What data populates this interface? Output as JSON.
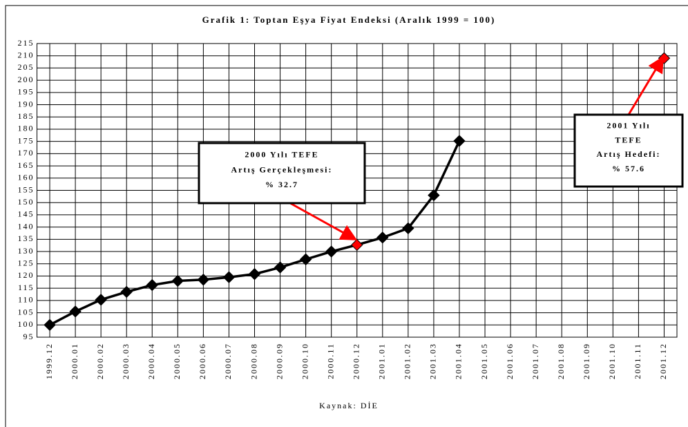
{
  "chart_data": {
    "type": "line",
    "title": "Grafik 1: Toptan Eşya Fiyat Endeksi (Aralık 1999 = 100)",
    "source": "Kaynak: DİE",
    "categories": [
      "1999.12",
      "2000.01",
      "2000.02",
      "2000.03",
      "2000.04",
      "2000.05",
      "2000.06",
      "2000.07",
      "2000.08",
      "2000.09",
      "2000.10",
      "2000.11",
      "2000.12",
      "2001.01",
      "2001.02",
      "2001.03",
      "2001.04",
      "2001.05",
      "2001.06",
      "2001.07",
      "2001.08",
      "2001.09",
      "2001.10",
      "2001.11",
      "2001.12"
    ],
    "series": [
      {
        "color": "#000000",
        "values": [
          100,
          105.5,
          110.3,
          113.5,
          116.3,
          118,
          118.5,
          119.5,
          120.8,
          123.5,
          126.8,
          130,
          132.7,
          135.7,
          139.5,
          153,
          175.2,
          null,
          null,
          null,
          null,
          null,
          null,
          null,
          209
        ],
        "point_colors": [
          "#000000",
          "#000000",
          "#000000",
          "#000000",
          "#000000",
          "#000000",
          "#000000",
          "#000000",
          "#000000",
          "#000000",
          "#000000",
          "#000000",
          "#ff0000",
          "#000000",
          "#000000",
          "#000000",
          "#000000",
          null,
          null,
          null,
          null,
          null,
          null,
          null,
          "#ff0000"
        ]
      }
    ],
    "ylim": [
      95,
      215
    ],
    "yticks": [
      95,
      100,
      105,
      110,
      115,
      120,
      125,
      130,
      135,
      140,
      145,
      150,
      155,
      160,
      165,
      170,
      175,
      180,
      185,
      190,
      195,
      200,
      205,
      210,
      215
    ],
    "grid": true,
    "annotations": [
      {
        "lines": [
          "2000 Yılı TEFE",
          "Artış Gerçekleşmesi:",
          "% 32.7"
        ],
        "color": "#ff0000"
      },
      {
        "lines": [
          "2001 Yılı",
          "TEFE",
          "Artış Hedefi:",
          "% 57.6"
        ],
        "color": "#ff0000"
      }
    ]
  }
}
